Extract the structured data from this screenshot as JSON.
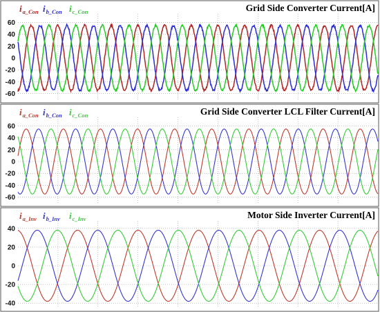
{
  "chart_data": [
    {
      "type": "line",
      "title": "Grid Side Converter Current[A]",
      "ylim": [
        -70,
        70
      ],
      "yticks": [
        60,
        40,
        20,
        0,
        -20,
        -40,
        -60
      ],
      "grid": true,
      "legend_position": "top-left",
      "cycles_shown": 13.5,
      "series": [
        {
          "name": "i",
          "subscript": "a_Con",
          "color": "#b22222",
          "amplitude": 55,
          "phase_deg": -90,
          "noise": 0.9
        },
        {
          "name": "i",
          "subscript": "b_Con",
          "color": "#2a2ad6",
          "amplitude": 55,
          "phase_deg": 150,
          "noise": 0.9
        },
        {
          "name": "i",
          "subscript": "c_Con",
          "color": "#22cc22",
          "amplitude": 55,
          "phase_deg": 30,
          "noise": 0.9
        }
      ]
    },
    {
      "type": "line",
      "title": "Grid Side Converter LCL Filter Current[A]",
      "ylim": [
        -70,
        70
      ],
      "yticks": [
        60,
        40,
        20,
        0,
        -20,
        -40,
        -60
      ],
      "grid": true,
      "legend_position": "top-left",
      "cycles_shown": 9.7,
      "series": [
        {
          "name": "i",
          "subscript": "a_Con",
          "color": "#c0392b",
          "amplitude": 55,
          "phase_deg": 10,
          "noise": 0
        },
        {
          "name": "i",
          "subscript": "b_Con",
          "color": "#3535d0",
          "amplitude": 55,
          "phase_deg": -110,
          "noise": 0
        },
        {
          "name": "i",
          "subscript": "c_Con",
          "color": "#33cc33",
          "amplitude": 55,
          "phase_deg": 130,
          "noise": 0
        }
      ]
    },
    {
      "type": "line",
      "title": "Motor Side Inverter Current[A]",
      "ylim": [
        -45,
        45
      ],
      "yticks": [
        40,
        20,
        0,
        -20,
        -40
      ],
      "grid": true,
      "legend_position": "top-left",
      "cycles_shown": 5.95,
      "series": [
        {
          "name": "i",
          "subscript": "a_Inv",
          "color": "#c0392b",
          "amplitude": 38,
          "phase_deg": 95,
          "noise": 0
        },
        {
          "name": "i",
          "subscript": "b_Inv",
          "color": "#3535d0",
          "amplitude": 38,
          "phase_deg": -25,
          "noise": 0
        },
        {
          "name": "i",
          "subscript": "c_Inv",
          "color": "#33cc33",
          "amplitude": 38,
          "phase_deg": -145,
          "noise": 0
        }
      ]
    }
  ]
}
